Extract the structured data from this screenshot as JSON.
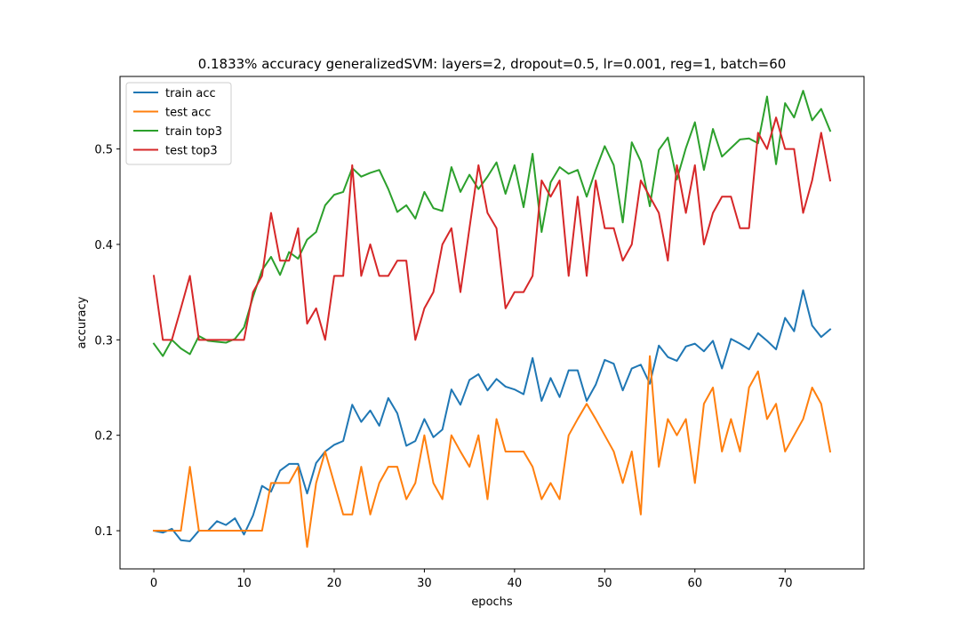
{
  "chart_data": {
    "type": "line",
    "title": "0.1833% accuracy generalizedSVM: layers=2, dropout=0.5, lr=0.001, reg=1, batch=60",
    "xlabel": "epochs",
    "ylabel": "accuracy",
    "xlim": [
      -3.75,
      78.75
    ],
    "ylim": [
      0.06,
      0.576
    ],
    "xticks": [
      0,
      10,
      20,
      30,
      40,
      50,
      60,
      70
    ],
    "yticks": [
      0.1,
      0.2,
      0.3,
      0.4,
      0.5
    ],
    "ytick_labels": [
      "0.1",
      "0.2",
      "0.3",
      "0.4",
      "0.5"
    ],
    "legend_position": "upper-left",
    "series": [
      {
        "name": "train acc",
        "color": "#1f77b4",
        "values": [
          0.1,
          0.098,
          0.102,
          0.09,
          0.089,
          0.1,
          0.1,
          0.11,
          0.106,
          0.113,
          0.096,
          0.116,
          0.147,
          0.141,
          0.163,
          0.17,
          0.17,
          0.139,
          0.171,
          0.183,
          0.19,
          0.194,
          0.232,
          0.214,
          0.226,
          0.21,
          0.239,
          0.223,
          0.189,
          0.194,
          0.217,
          0.198,
          0.206,
          0.248,
          0.232,
          0.258,
          0.264,
          0.247,
          0.259,
          0.251,
          0.248,
          0.243,
          0.281,
          0.236,
          0.26,
          0.24,
          0.268,
          0.268,
          0.236,
          0.253,
          0.279,
          0.275,
          0.247,
          0.27,
          0.274,
          0.254,
          0.294,
          0.282,
          0.278,
          0.293,
          0.296,
          0.288,
          0.299,
          0.27,
          0.301,
          0.296,
          0.29,
          0.307,
          0.299,
          0.29,
          0.323,
          0.309,
          0.352,
          0.315,
          0.303,
          0.311
        ]
      },
      {
        "name": "test acc",
        "color": "#ff7f0e",
        "values": [
          0.1,
          0.1,
          0.1,
          0.1,
          0.167,
          0.1,
          0.1,
          0.1,
          0.1,
          0.1,
          0.1,
          0.1,
          0.1,
          0.15,
          0.15,
          0.15,
          0.167,
          0.083,
          0.15,
          0.183,
          0.15,
          0.117,
          0.117,
          0.167,
          0.117,
          0.15,
          0.167,
          0.167,
          0.133,
          0.15,
          0.2,
          0.15,
          0.133,
          0.2,
          0.183,
          0.167,
          0.2,
          0.133,
          0.217,
          0.183,
          0.183,
          0.183,
          0.167,
          0.133,
          0.15,
          0.133,
          0.2,
          0.217,
          0.233,
          0.217,
          0.2,
          0.183,
          0.15,
          0.183,
          0.117,
          0.283,
          0.167,
          0.217,
          0.2,
          0.217,
          0.15,
          0.233,
          0.25,
          0.183,
          0.217,
          0.183,
          0.25,
          0.267,
          0.217,
          0.233,
          0.183,
          0.2,
          0.217,
          0.25,
          0.233,
          0.183
        ]
      },
      {
        "name": "train top3",
        "color": "#2ca02c",
        "values": [
          0.296,
          0.283,
          0.3,
          0.291,
          0.285,
          0.304,
          0.299,
          0.298,
          0.297,
          0.301,
          0.313,
          0.345,
          0.373,
          0.387,
          0.368,
          0.392,
          0.385,
          0.405,
          0.413,
          0.441,
          0.452,
          0.455,
          0.48,
          0.471,
          0.475,
          0.478,
          0.458,
          0.434,
          0.441,
          0.427,
          0.455,
          0.438,
          0.435,
          0.481,
          0.455,
          0.473,
          0.458,
          0.471,
          0.486,
          0.453,
          0.483,
          0.439,
          0.495,
          0.413,
          0.465,
          0.481,
          0.474,
          0.478,
          0.45,
          0.478,
          0.503,
          0.483,
          0.423,
          0.507,
          0.487,
          0.44,
          0.499,
          0.512,
          0.468,
          0.501,
          0.528,
          0.478,
          0.521,
          0.492,
          0.501,
          0.51,
          0.511,
          0.506,
          0.555,
          0.484,
          0.548,
          0.533,
          0.561,
          0.53,
          0.542,
          0.519
        ]
      },
      {
        "name": "test top3",
        "color": "#d62728",
        "values": [
          0.367,
          0.3,
          0.3,
          0.333,
          0.367,
          0.3,
          0.3,
          0.3,
          0.3,
          0.3,
          0.3,
          0.35,
          0.367,
          0.433,
          0.383,
          0.383,
          0.417,
          0.317,
          0.333,
          0.3,
          0.367,
          0.367,
          0.483,
          0.367,
          0.4,
          0.367,
          0.367,
          0.383,
          0.383,
          0.3,
          0.333,
          0.35,
          0.4,
          0.417,
          0.35,
          0.417,
          0.483,
          0.433,
          0.417,
          0.333,
          0.35,
          0.35,
          0.367,
          0.467,
          0.45,
          0.467,
          0.367,
          0.45,
          0.367,
          0.467,
          0.417,
          0.417,
          0.383,
          0.4,
          0.467,
          0.45,
          0.433,
          0.383,
          0.483,
          0.433,
          0.483,
          0.4,
          0.433,
          0.45,
          0.45,
          0.417,
          0.417,
          0.517,
          0.5,
          0.533,
          0.5,
          0.5,
          0.433,
          0.467,
          0.517,
          0.467
        ]
      }
    ]
  }
}
